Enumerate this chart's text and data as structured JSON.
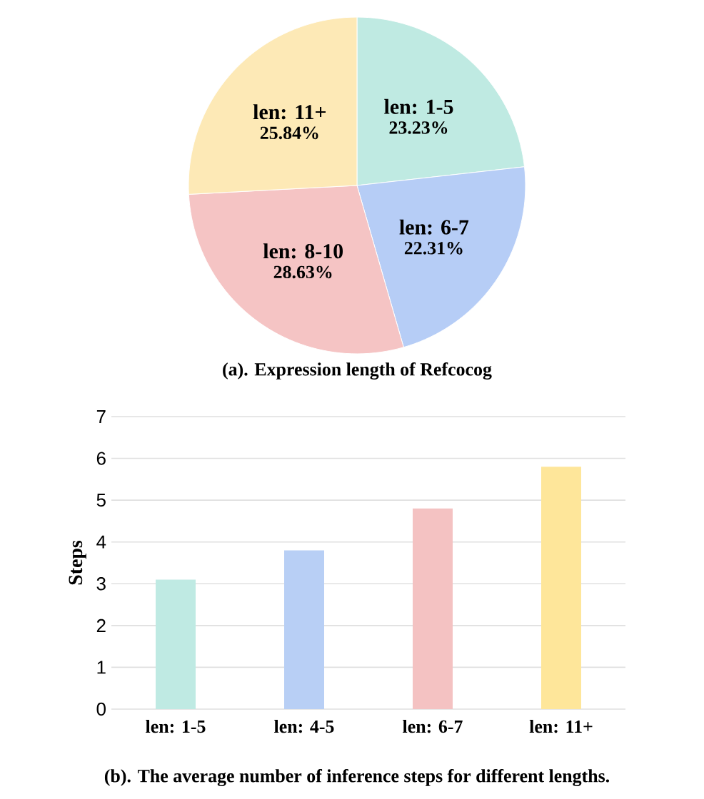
{
  "chart_data": [
    {
      "type": "pie",
      "title": "(a). Expression length of Refcocog",
      "categories": [
        "len: 1-5",
        "len: 6-7",
        "len: 8-10",
        "len: 11+"
      ],
      "values": [
        23.23,
        22.31,
        28.63,
        25.84
      ],
      "value_labels": [
        "23.23%",
        "22.31%",
        "28.63%",
        "25.84%"
      ],
      "colors": [
        "#bfeae2",
        "#b6cdf6",
        "#f5c4c4",
        "#fde9b6"
      ]
    },
    {
      "type": "bar",
      "title": "(b). The average number of inference steps for different lengths.",
      "ylabel": "Steps",
      "categories": [
        "len: 1-5",
        "len: 4-5",
        "len: 6-7",
        "len: 11+"
      ],
      "values": [
        3.1,
        3.8,
        4.8,
        5.8
      ],
      "colors": [
        "#bfeae3",
        "#b8cff5",
        "#f4c2c2",
        "#fee69a"
      ],
      "ylim": [
        0,
        7
      ],
      "yticks": [
        0,
        1,
        2,
        3,
        4,
        5,
        6,
        7
      ],
      "grid": "y"
    }
  ]
}
